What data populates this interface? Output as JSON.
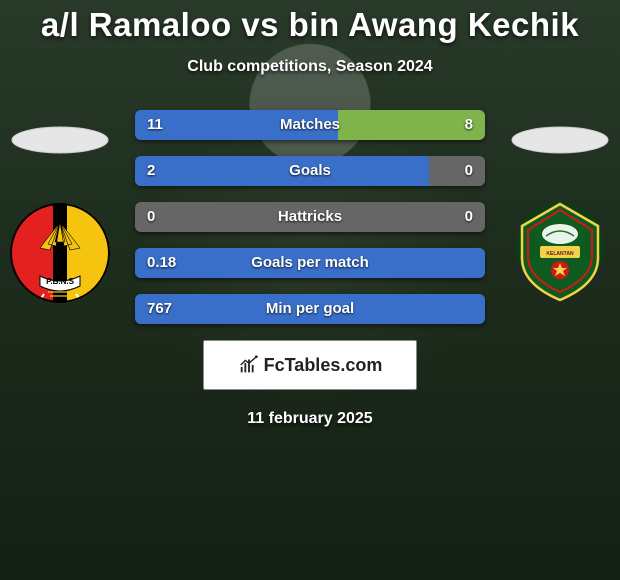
{
  "header": {
    "title": "a/l Ramaloo vs bin Awang Kechik",
    "subtitle": "Club competitions, Season 2024"
  },
  "colors": {
    "bar_left": "#3a6fc9",
    "bar_right": "#7fb44a",
    "bar_neutral": "#666666",
    "text": "#ffffff"
  },
  "stats": [
    {
      "label": "Matches",
      "left_value": "11",
      "right_value": "8",
      "left_pct": 58,
      "right_pct": 42
    },
    {
      "label": "Goals",
      "left_value": "2",
      "right_value": "0",
      "left_pct": 100,
      "right_pct": 0,
      "neutral_right": true
    },
    {
      "label": "Hattricks",
      "left_value": "0",
      "right_value": "0",
      "left_pct": 0,
      "right_pct": 0,
      "neutral_full": true
    },
    {
      "label": "Goals per match",
      "left_value": "0.18",
      "right_value": "",
      "left_pct": 100,
      "right_pct": 0
    },
    {
      "label": "Min per goal",
      "left_value": "767",
      "right_value": "",
      "left_pct": 100,
      "right_pct": 0
    }
  ],
  "players": {
    "left_crest": {
      "bg": "#000000",
      "stripes": [
        "#e32121",
        "#f4c40f"
      ],
      "banner_text": "P.B.N.S",
      "banner_color": "#ffffff"
    },
    "right_crest": {
      "bg": "#0f5b1f",
      "trim": "#f2d24a",
      "ring": "#d01818"
    }
  },
  "branding": {
    "site_name": "FcTables.com"
  },
  "footer": {
    "date": "11 february 2025"
  }
}
